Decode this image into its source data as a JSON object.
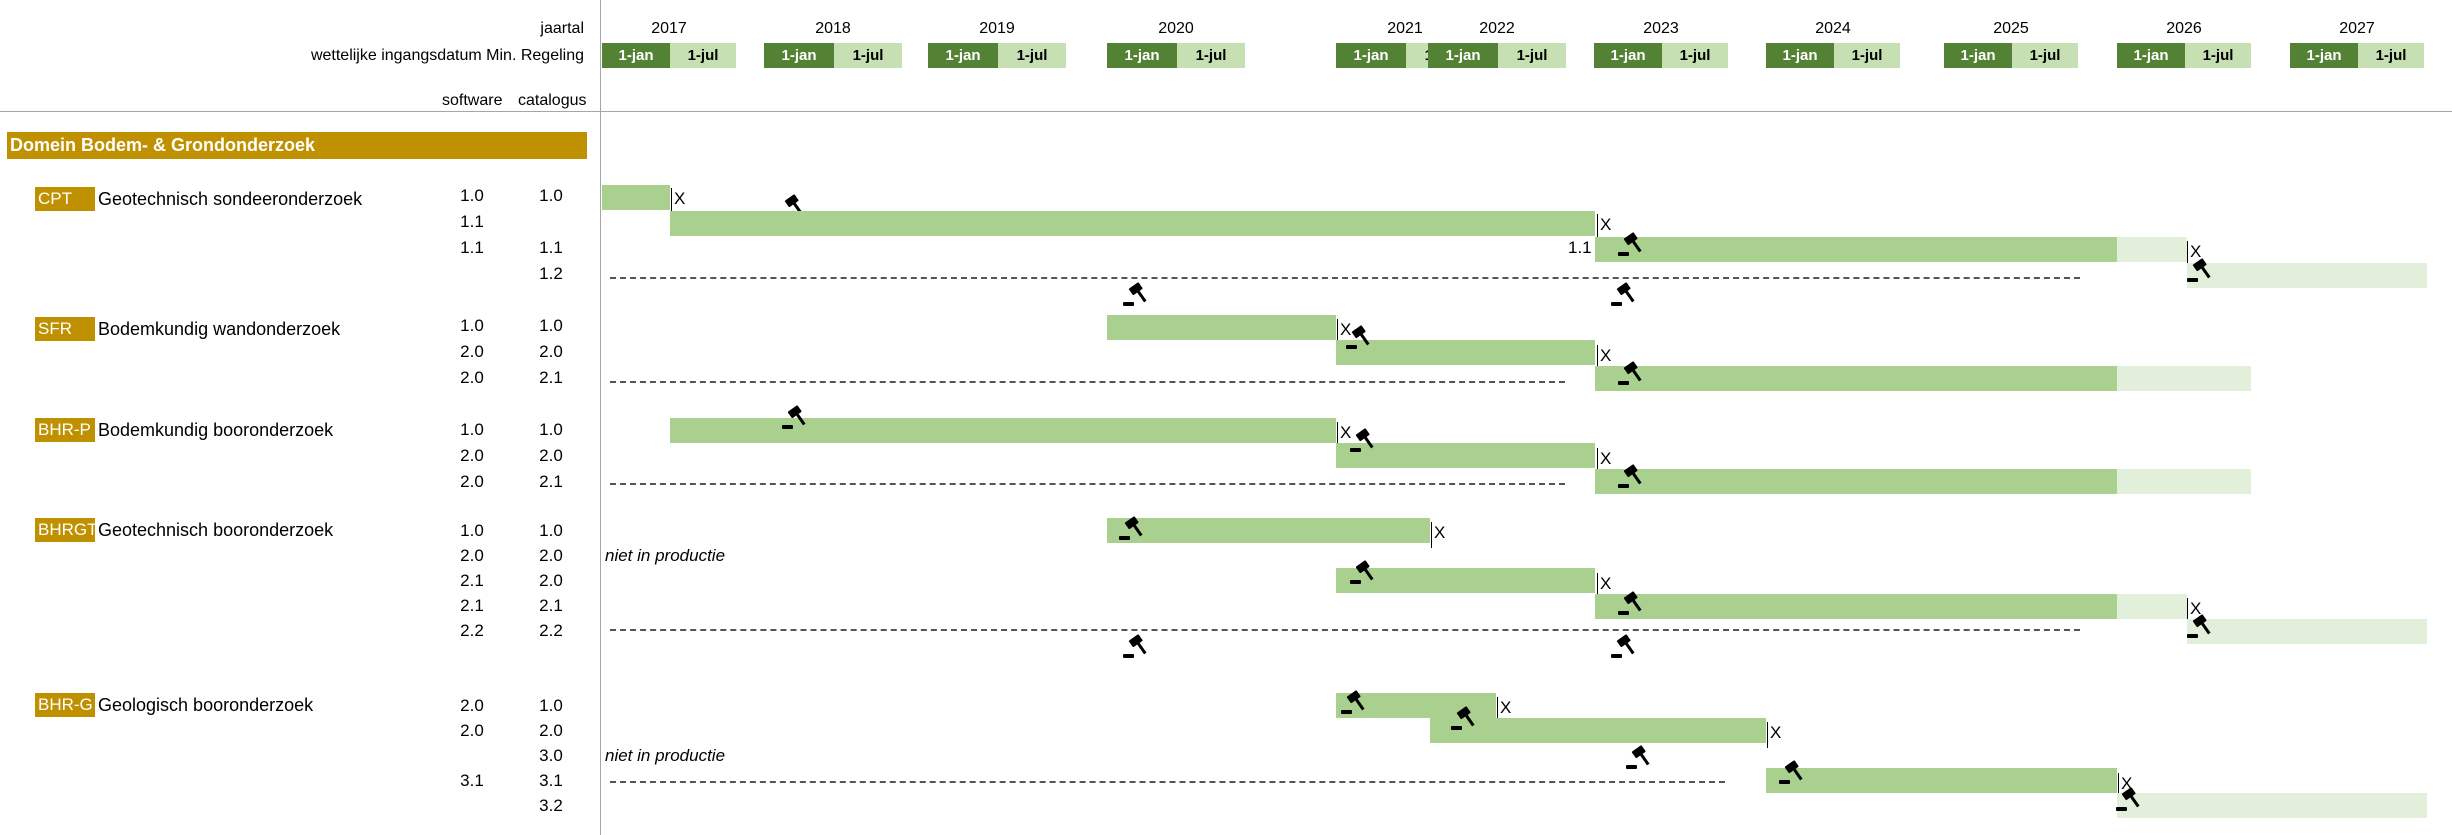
{
  "header": {
    "jaartal_label": "jaartal",
    "ingangsdatum_label": "wettelijke ingangsdatum Min. Regeling",
    "software_label": "software",
    "catalogus_label": "catalogus",
    "half_labels": {
      "jan": "1-jan",
      "jul": "1-jul"
    },
    "years": [
      "2017",
      "2018",
      "2019",
      "2020",
      "2021",
      "2022",
      "2023",
      "2024",
      "2025",
      "2026",
      "2027"
    ]
  },
  "domain": {
    "title": "Domein Bodem- & Grondonderzoek"
  },
  "groups": [
    {
      "code": "CPT",
      "title": "Geotechnisch sondeeronderzoek",
      "rows": [
        {
          "software": "1.0",
          "catalogus": "1.0"
        },
        {
          "software": "1.1",
          "catalogus": ""
        },
        {
          "software": "1.1",
          "catalogus": "1.1",
          "inline_label": "1.1"
        },
        {
          "software": "",
          "catalogus": "1.2"
        }
      ]
    },
    {
      "code": "SFR",
      "title": "Bodemkundig wandonderzoek",
      "rows": [
        {
          "software": "1.0",
          "catalogus": "1.0"
        },
        {
          "software": "2.0",
          "catalogus": "2.0"
        },
        {
          "software": "2.0",
          "catalogus": "2.1"
        }
      ]
    },
    {
      "code": "BHR-P",
      "title": "Bodemkundig booronderzoek",
      "rows": [
        {
          "software": "1.0",
          "catalogus": "1.0"
        },
        {
          "software": "2.0",
          "catalogus": "2.0"
        },
        {
          "software": "2.0",
          "catalogus": "2.1"
        }
      ]
    },
    {
      "code": "BHRGT",
      "title": "Geotechnisch booronderzoek",
      "rows": [
        {
          "software": "1.0",
          "catalogus": "1.0"
        },
        {
          "software": "2.0",
          "catalogus": "2.0",
          "note": "niet in productie"
        },
        {
          "software": "2.1",
          "catalogus": "2.0"
        },
        {
          "software": "2.1",
          "catalogus": "2.1"
        },
        {
          "software": "2.2",
          "catalogus": "2.2"
        }
      ]
    },
    {
      "code": "BHR-G",
      "title": "Geologisch booronderzoek",
      "rows": [
        {
          "software": "2.0",
          "catalogus": "1.0"
        },
        {
          "software": "2.0",
          "catalogus": "2.0"
        },
        {
          "software": "",
          "catalogus": "3.0",
          "note": "niet in productie"
        },
        {
          "software": "3.1",
          "catalogus": "3.1"
        },
        {
          "software": "",
          "catalogus": "3.2"
        }
      ]
    }
  ],
  "markers": {
    "end": "X"
  },
  "colors": {
    "domain": "#bf9000",
    "jan": "#548235",
    "jul": "#c6e0b4",
    "bar_active": "#a9d08e",
    "bar_future": "#e2efda"
  },
  "icons": {
    "publication": "gavel-icon"
  }
}
